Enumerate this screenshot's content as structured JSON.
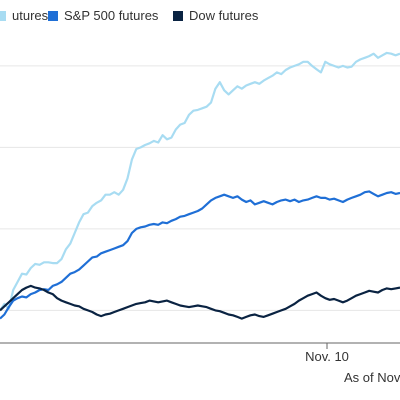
{
  "chart_data": {
    "type": "line",
    "title": "",
    "xlabel": "",
    "ylabel": "",
    "legend_position": "top",
    "grid": true,
    "x_ticks": [
      "Nov. 10"
    ],
    "footnote": "As of Nov",
    "series": [
      {
        "name": "utures",
        "color": "#a8dcf2",
        "values": [
          0.0,
          0.08,
          0.02,
          0.25,
          0.35,
          0.45,
          0.44,
          0.52,
          0.57,
          0.56,
          0.59,
          0.59,
          0.58,
          0.58,
          0.63,
          0.75,
          0.82,
          0.95,
          1.08,
          1.18,
          1.2,
          1.28,
          1.32,
          1.35,
          1.42,
          1.42,
          1.45,
          1.42,
          1.48,
          1.62,
          1.85,
          1.98,
          2.0,
          2.03,
          2.05,
          2.08,
          2.06,
          2.15,
          2.1,
          2.12,
          2.22,
          2.28,
          2.3,
          2.4,
          2.45,
          2.46,
          2.48,
          2.5,
          2.55,
          2.72,
          2.8,
          2.7,
          2.65,
          2.7,
          2.75,
          2.72,
          2.76,
          2.78,
          2.8,
          2.78,
          2.82,
          2.85,
          2.88,
          2.92,
          2.9,
          2.95,
          2.98,
          3.0,
          3.02,
          3.05,
          3.05,
          3.0,
          2.96,
          2.92,
          3.05,
          3.02,
          3.0,
          2.98,
          3.0,
          2.98,
          2.99,
          3.05,
          3.08,
          3.1,
          3.12,
          3.15,
          3.1,
          3.13,
          3.16,
          3.15,
          3.13,
          3.15
        ]
      },
      {
        "name": "S&P 500 futures",
        "color": "#1f6fd6",
        "values": [
          -0.1,
          -0.05,
          0.04,
          0.12,
          0.15,
          0.17,
          0.16,
          0.2,
          0.22,
          0.25,
          0.26,
          0.25,
          0.3,
          0.32,
          0.35,
          0.4,
          0.45,
          0.47,
          0.5,
          0.55,
          0.6,
          0.65,
          0.66,
          0.7,
          0.72,
          0.74,
          0.76,
          0.78,
          0.8,
          0.85,
          0.95,
          1.0,
          1.02,
          1.03,
          1.05,
          1.06,
          1.05,
          1.08,
          1.07,
          1.1,
          1.12,
          1.15,
          1.16,
          1.18,
          1.2,
          1.22,
          1.25,
          1.3,
          1.35,
          1.38,
          1.4,
          1.42,
          1.4,
          1.38,
          1.4,
          1.36,
          1.33,
          1.35,
          1.3,
          1.32,
          1.34,
          1.32,
          1.3,
          1.33,
          1.35,
          1.36,
          1.34,
          1.36,
          1.33,
          1.35,
          1.36,
          1.38,
          1.4,
          1.38,
          1.38,
          1.36,
          1.37,
          1.35,
          1.33,
          1.36,
          1.38,
          1.4,
          1.42,
          1.45,
          1.46,
          1.43,
          1.4,
          1.42,
          1.44,
          1.45,
          1.43,
          1.44
        ]
      },
      {
        "name": "Dow futures",
        "color": "#0a2342",
        "values": [
          0.0,
          0.05,
          0.1,
          0.15,
          0.2,
          0.25,
          0.28,
          0.3,
          0.28,
          0.27,
          0.25,
          0.22,
          0.2,
          0.15,
          0.12,
          0.1,
          0.08,
          0.06,
          0.05,
          0.02,
          0.0,
          -0.02,
          -0.05,
          -0.07,
          -0.05,
          -0.04,
          -0.02,
          0.0,
          0.02,
          0.04,
          0.06,
          0.08,
          0.09,
          0.1,
          0.12,
          0.11,
          0.1,
          0.11,
          0.12,
          0.1,
          0.08,
          0.06,
          0.05,
          0.04,
          0.05,
          0.06,
          0.05,
          0.04,
          0.02,
          0.0,
          -0.01,
          -0.03,
          -0.05,
          -0.06,
          -0.08,
          -0.1,
          -0.08,
          -0.06,
          -0.05,
          -0.07,
          -0.08,
          -0.06,
          -0.04,
          -0.02,
          0.0,
          0.02,
          0.05,
          0.08,
          0.12,
          0.15,
          0.18,
          0.2,
          0.22,
          0.18,
          0.15,
          0.13,
          0.14,
          0.12,
          0.1,
          0.12,
          0.15,
          0.18,
          0.2,
          0.22,
          0.24,
          0.23,
          0.22,
          0.25,
          0.27,
          0.26,
          0.27,
          0.28
        ]
      }
    ],
    "ylim": [
      -0.4,
      3.6
    ]
  }
}
